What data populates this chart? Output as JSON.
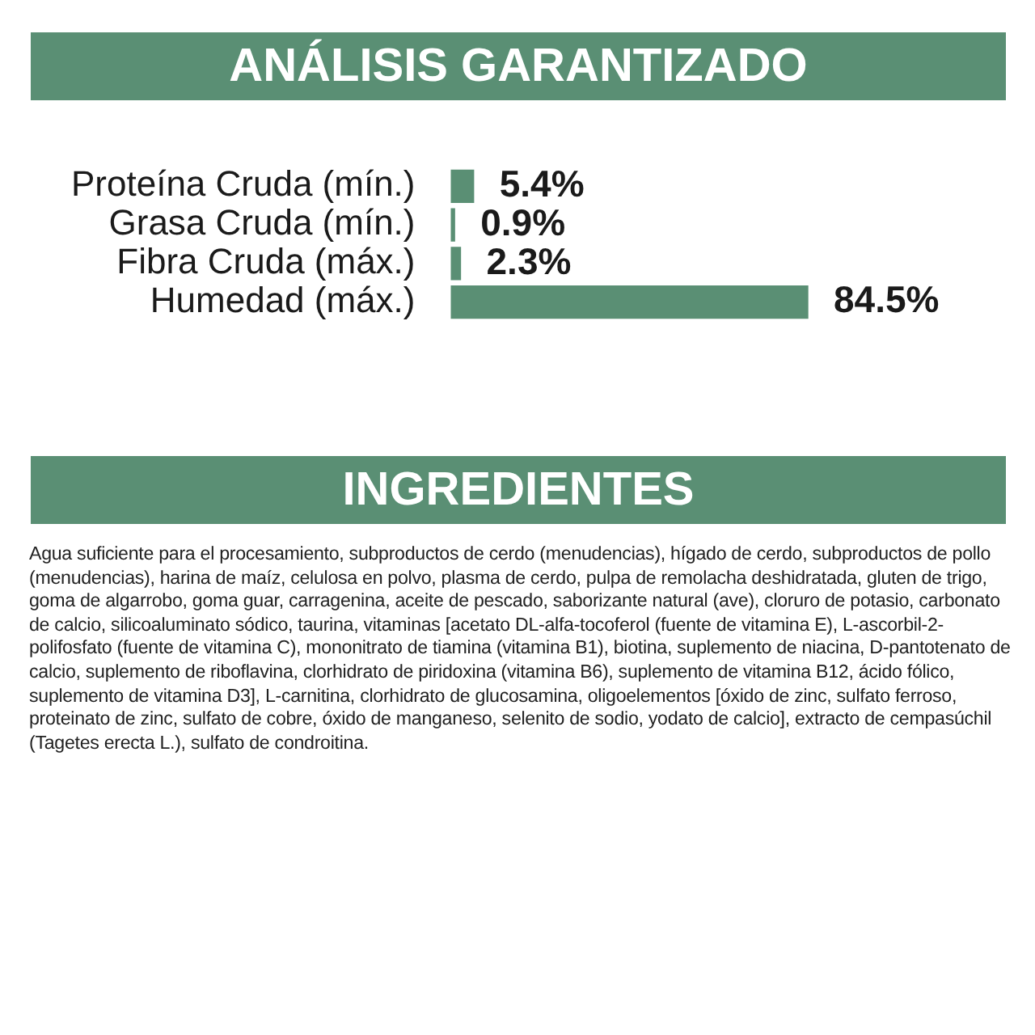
{
  "chart_data": {
    "type": "bar",
    "orientation": "horizontal",
    "title": "ANÁLISIS GARANTIZADO",
    "categories": [
      "Proteína Cruda (mín.)",
      "Grasa Cruda (mín.)",
      "Fibra Cruda (máx.)",
      "Humedad (máx.)"
    ],
    "values": [
      5.4,
      0.9,
      2.3,
      84.5
    ],
    "value_labels": [
      "5.4%",
      "0.9%",
      "2.3%",
      "84.5%"
    ],
    "color": "#5a8f74",
    "annotations": [
      "INGREDIENTES",
      "Agua suficiente para el procesamiento, subproductos de cerdo (menudencias), hígado de cerdo, subproductos de pollo (menudencias), harina de maíz, celulosa en polvo, plasma de cerdo, pulpa de remolacha deshidratada, gluten de trigo, goma de algarrobo, goma guar, carragenina, aceite de pescado, saborizante natural (ave), cloruro de potasio, carbonato de calcio, silicoaluminato sódico, taurina, vitaminas [acetato DL-alfa-tocoferol (fuente de vitamina E), L-ascorbil-2-polifosfato (fuente de vitamina C), mononitrato de tiamina (vitamina B1), biotina, suplemento de niacina, D-pantotenato de calcio, suplemento de riboflavina, clorhidrato de piridoxina (vitamina B6), suplemento de vitamina B12, ácido fólico, suplemento de vitamina D3], L-carnitina, clorhidrato de glucosamina, oligoelementos [óxido de zinc, sulfato ferroso, proteinato de zinc, sulfato de cobre, óxido de manganeso, selenito de sodio, yodato de calcio], extracto de cempasúchil (Tagetes erecta L.), sulfato de condroitina."
    ]
  }
}
